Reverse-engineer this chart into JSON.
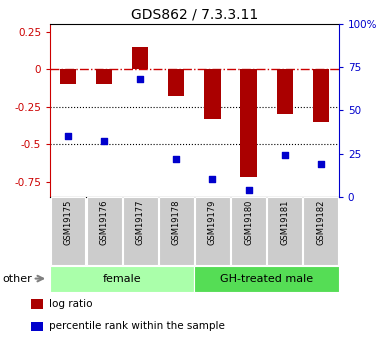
{
  "title": "GDS862 / 7.3.3.11",
  "samples": [
    "GSM19175",
    "GSM19176",
    "GSM19177",
    "GSM19178",
    "GSM19179",
    "GSM19180",
    "GSM19181",
    "GSM19182"
  ],
  "log_ratio": [
    -0.1,
    -0.1,
    0.15,
    -0.18,
    -0.33,
    -0.72,
    -0.3,
    -0.35
  ],
  "percentile_rank": [
    35,
    32,
    68,
    22,
    10,
    4,
    24,
    19
  ],
  "groups": [
    {
      "label": "female",
      "start": 0,
      "end": 4,
      "color": "#aaffaa"
    },
    {
      "label": "GH-treated male",
      "start": 4,
      "end": 8,
      "color": "#55dd55"
    }
  ],
  "ylim_left": [
    -0.85,
    0.3
  ],
  "ylim_right": [
    0,
    100
  ],
  "left_ticks": [
    0.25,
    0,
    -0.25,
    -0.5,
    -0.75
  ],
  "right_ticks": [
    100,
    75,
    50,
    25,
    0
  ],
  "bar_color": "#aa0000",
  "dot_color": "#0000cc",
  "hline_color": "#cc0000",
  "bar_width": 0.45,
  "legend_items": [
    {
      "label": "log ratio",
      "color": "#aa0000"
    },
    {
      "label": "percentile rank within the sample",
      "color": "#0000cc"
    }
  ]
}
